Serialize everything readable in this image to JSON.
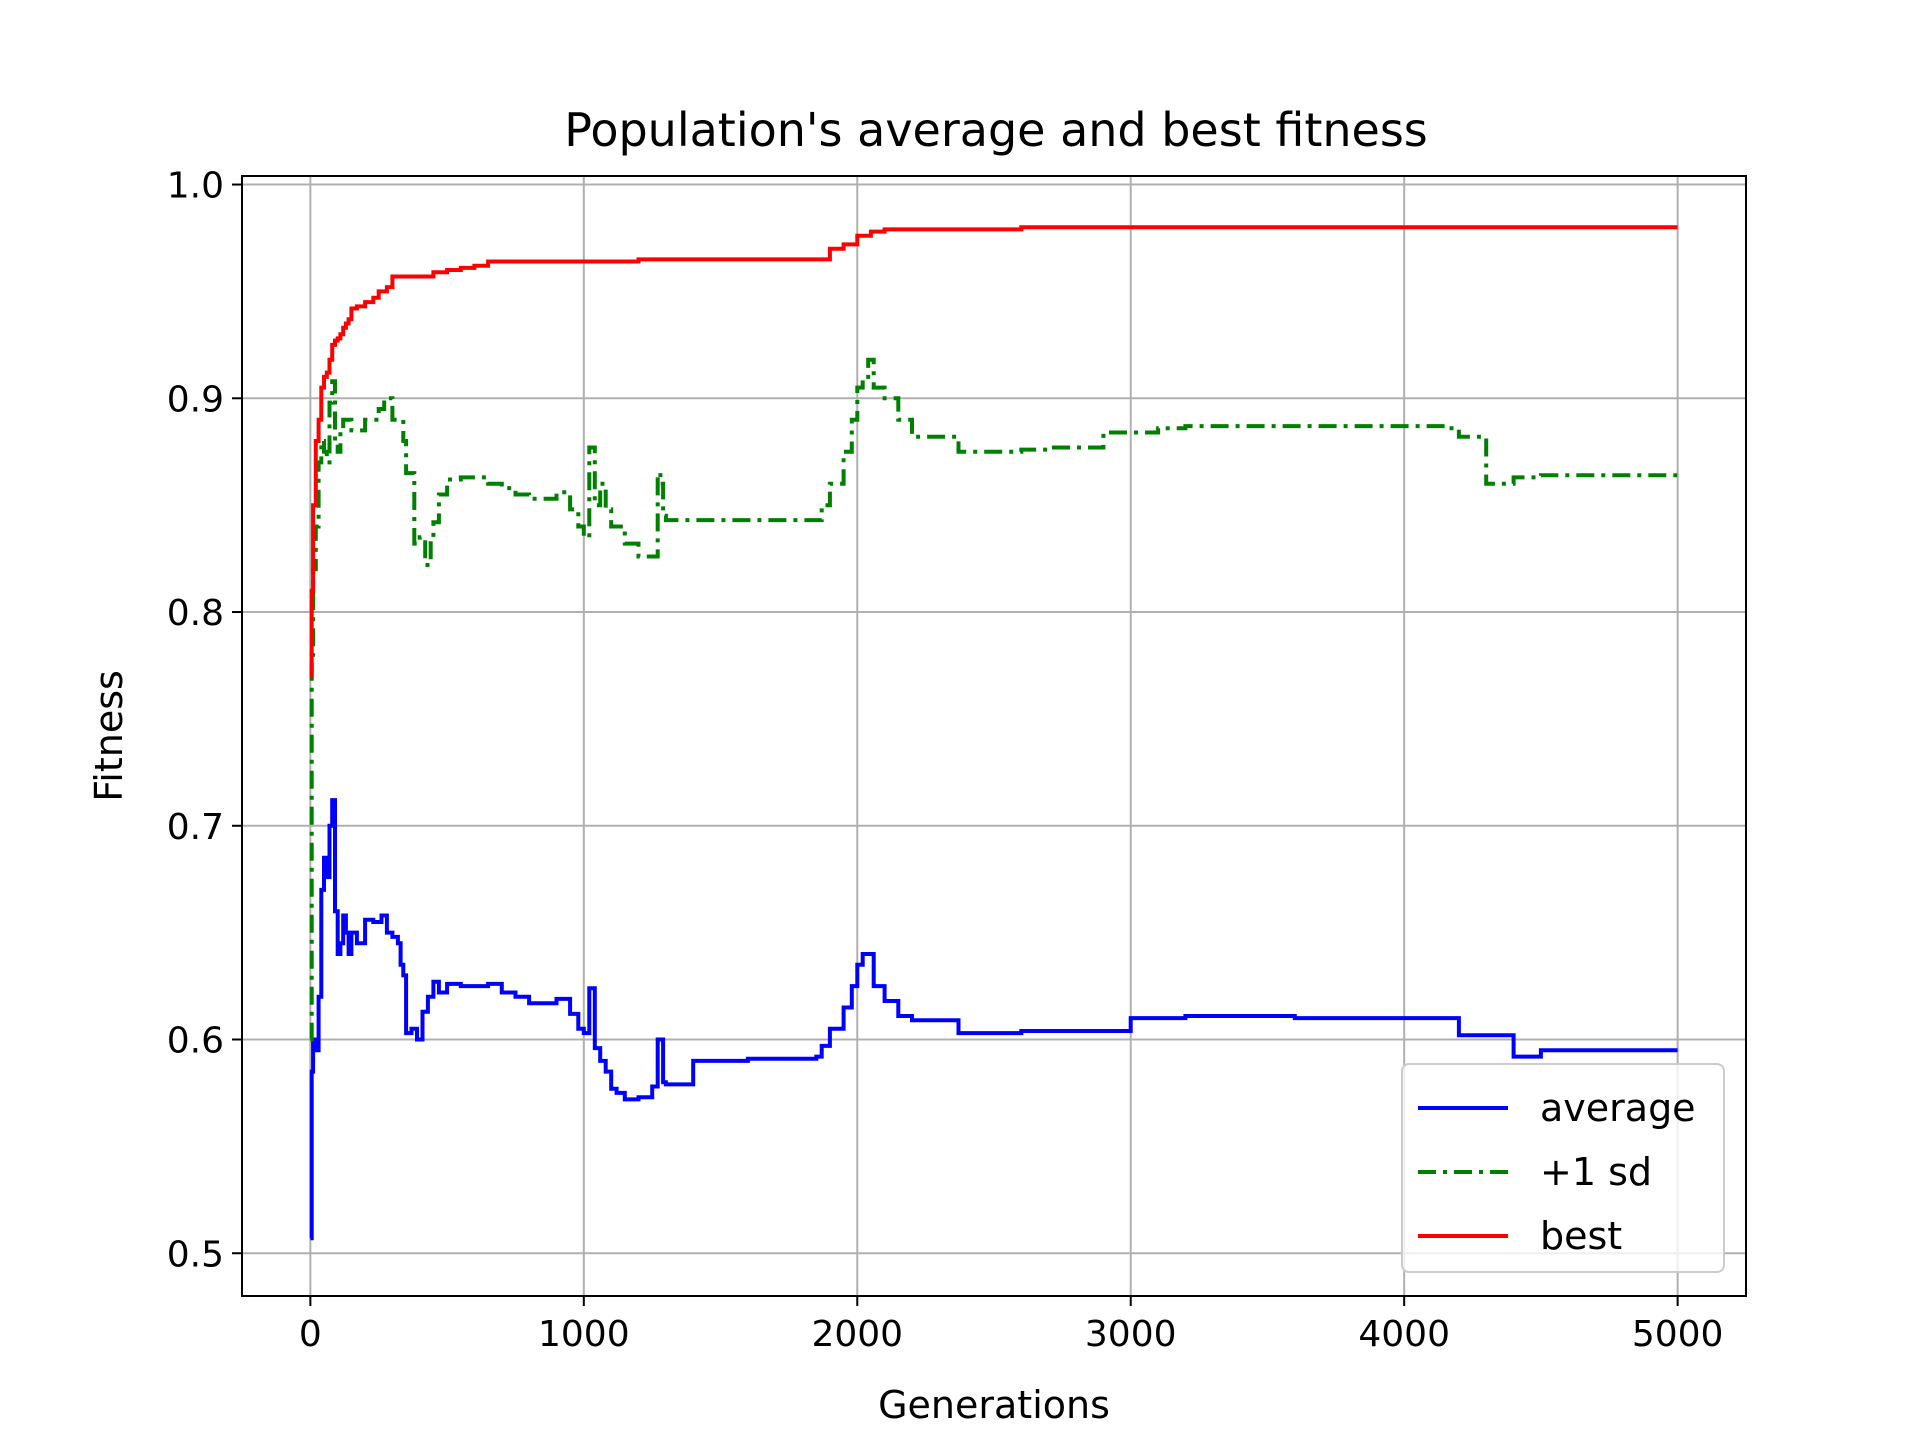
{
  "chart_data": {
    "type": "line",
    "title": "Population's average and best fitness",
    "xlabel": "Generations",
    "ylabel": "Fitness",
    "xlim": [
      -250,
      5250
    ],
    "ylim": [
      0.48,
      1.004
    ],
    "xticks": [
      0,
      1000,
      2000,
      3000,
      4000,
      5000
    ],
    "yticks": [
      0.5,
      0.6,
      0.7,
      0.8,
      0.9,
      1.0
    ],
    "xtick_labels": [
      "0",
      "1000",
      "2000",
      "3000",
      "4000",
      "5000"
    ],
    "ytick_labels": [
      "0.5",
      "0.6",
      "0.7",
      "0.8",
      "0.9",
      "1.0"
    ],
    "grid": true,
    "legend": "lower-right",
    "series": [
      {
        "name": "average",
        "color": "#0000ff",
        "style": "solid",
        "x": [
          0,
          5,
          10,
          20,
          30,
          40,
          50,
          60,
          70,
          80,
          90,
          100,
          110,
          120,
          130,
          140,
          150,
          170,
          200,
          230,
          260,
          280,
          300,
          320,
          330,
          340,
          350,
          370,
          390,
          410,
          430,
          450,
          470,
          500,
          550,
          600,
          650,
          700,
          750,
          800,
          900,
          950,
          980,
          1000,
          1020,
          1040,
          1060,
          1080,
          1100,
          1120,
          1150,
          1200,
          1250,
          1270,
          1280,
          1290,
          1300,
          1400,
          1500,
          1600,
          1700,
          1850,
          1870,
          1900,
          1950,
          1980,
          2000,
          2020,
          2040,
          2060,
          2100,
          2150,
          2200,
          2300,
          2370,
          2500,
          2600,
          2700,
          2900,
          3000,
          3100,
          3200,
          3400,
          3500,
          3600,
          3800,
          4000,
          4150,
          4200,
          4300,
          4400,
          4500,
          5000
        ],
        "y": [
          0.507,
          0.585,
          0.6,
          0.595,
          0.62,
          0.67,
          0.685,
          0.676,
          0.7,
          0.712,
          0.66,
          0.64,
          0.645,
          0.658,
          0.65,
          0.64,
          0.65,
          0.645,
          0.656,
          0.655,
          0.658,
          0.65,
          0.648,
          0.645,
          0.635,
          0.63,
          0.603,
          0.605,
          0.6,
          0.613,
          0.62,
          0.627,
          0.622,
          0.626,
          0.625,
          0.625,
          0.626,
          0.622,
          0.62,
          0.617,
          0.619,
          0.612,
          0.605,
          0.603,
          0.624,
          0.596,
          0.59,
          0.585,
          0.577,
          0.575,
          0.572,
          0.573,
          0.578,
          0.6,
          0.6,
          0.58,
          0.579,
          0.59,
          0.59,
          0.591,
          0.591,
          0.592,
          0.597,
          0.605,
          0.615,
          0.625,
          0.635,
          0.64,
          0.64,
          0.625,
          0.618,
          0.611,
          0.609,
          0.609,
          0.603,
          0.603,
          0.604,
          0.604,
          0.604,
          0.61,
          0.61,
          0.611,
          0.611,
          0.611,
          0.61,
          0.61,
          0.61,
          0.61,
          0.602,
          0.602,
          0.592,
          0.595,
          0.595
        ]
      },
      {
        "name": "+1 sd",
        "color": "#008000",
        "style": "dashdot",
        "x": [
          0,
          5,
          10,
          20,
          30,
          40,
          50,
          60,
          70,
          80,
          90,
          100,
          110,
          120,
          150,
          200,
          250,
          270,
          300,
          320,
          340,
          350,
          380,
          400,
          420,
          440,
          450,
          470,
          500,
          550,
          600,
          650,
          700,
          750,
          800,
          900,
          950,
          980,
          1000,
          1020,
          1040,
          1060,
          1080,
          1100,
          1150,
          1200,
          1250,
          1270,
          1280,
          1290,
          1300,
          1400,
          1500,
          1600,
          1700,
          1850,
          1870,
          1900,
          1950,
          1980,
          2000,
          2020,
          2040,
          2060,
          2100,
          2150,
          2200,
          2300,
          2370,
          2500,
          2600,
          2700,
          2900,
          3000,
          3100,
          3200,
          3400,
          3500,
          3600,
          3800,
          4000,
          4150,
          4200,
          4280,
          4300,
          4400,
          4500,
          5000
        ],
        "y": [
          0.6,
          0.78,
          0.82,
          0.84,
          0.87,
          0.88,
          0.875,
          0.87,
          0.898,
          0.908,
          0.88,
          0.875,
          0.885,
          0.89,
          0.885,
          0.89,
          0.895,
          0.9,
          0.89,
          0.89,
          0.88,
          0.865,
          0.832,
          0.835,
          0.822,
          0.835,
          0.842,
          0.855,
          0.862,
          0.863,
          0.863,
          0.86,
          0.858,
          0.855,
          0.853,
          0.856,
          0.848,
          0.84,
          0.835,
          0.877,
          0.85,
          0.86,
          0.848,
          0.84,
          0.832,
          0.826,
          0.826,
          0.865,
          0.86,
          0.845,
          0.843,
          0.843,
          0.843,
          0.843,
          0.843,
          0.843,
          0.85,
          0.86,
          0.875,
          0.89,
          0.905,
          0.91,
          0.918,
          0.905,
          0.9,
          0.89,
          0.882,
          0.882,
          0.875,
          0.875,
          0.876,
          0.877,
          0.884,
          0.884,
          0.886,
          0.887,
          0.887,
          0.887,
          0.887,
          0.887,
          0.887,
          0.886,
          0.882,
          0.882,
          0.86,
          0.863,
          0.864,
          0.864
        ]
      },
      {
        "name": "best",
        "color": "#ff0000",
        "style": "solid",
        "x": [
          0,
          5,
          10,
          20,
          30,
          40,
          50,
          60,
          70,
          80,
          90,
          100,
          110,
          120,
          130,
          140,
          150,
          170,
          200,
          230,
          250,
          280,
          300,
          320,
          340,
          400,
          450,
          500,
          550,
          600,
          650,
          700,
          800,
          900,
          1000,
          1200,
          1500,
          1800,
          1880,
          1900,
          1950,
          2000,
          2050,
          2100,
          2200,
          2500,
          2600,
          3000,
          4000,
          5000
        ],
        "y": [
          0.77,
          0.81,
          0.85,
          0.88,
          0.89,
          0.905,
          0.91,
          0.912,
          0.918,
          0.925,
          0.927,
          0.928,
          0.93,
          0.933,
          0.935,
          0.937,
          0.942,
          0.943,
          0.945,
          0.947,
          0.95,
          0.952,
          0.957,
          0.957,
          0.957,
          0.957,
          0.959,
          0.96,
          0.961,
          0.962,
          0.964,
          0.964,
          0.964,
          0.964,
          0.964,
          0.965,
          0.965,
          0.965,
          0.965,
          0.97,
          0.972,
          0.976,
          0.978,
          0.979,
          0.979,
          0.979,
          0.98,
          0.98,
          0.98,
          0.98
        ]
      }
    ]
  }
}
